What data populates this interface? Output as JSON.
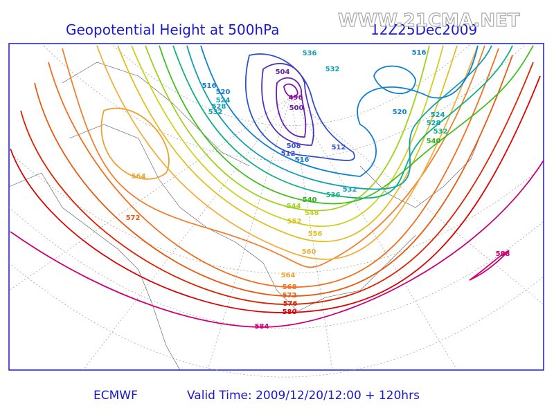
{
  "header": {
    "title": "Geopotential Height at 500hPa",
    "time": "12Z25Dec2009"
  },
  "watermark": "WWW.21CMA.NET",
  "map": {
    "contour_labels": [
      "536",
      "532",
      "516",
      "504",
      "516",
      "520",
      "524",
      "528",
      "532",
      "496",
      "500",
      "508",
      "512",
      "516",
      "512",
      "520",
      "524",
      "528",
      "532",
      "540",
      "564",
      "572",
      "540",
      "536",
      "532",
      "544",
      "548",
      "552",
      "556",
      "560",
      "564",
      "568",
      "572",
      "576",
      "580",
      "584",
      "588"
    ]
  },
  "footer": {
    "source": "ECMWF",
    "valid_time": "Valid Time: 2009/12/20/12:00 + 120hrs"
  }
}
